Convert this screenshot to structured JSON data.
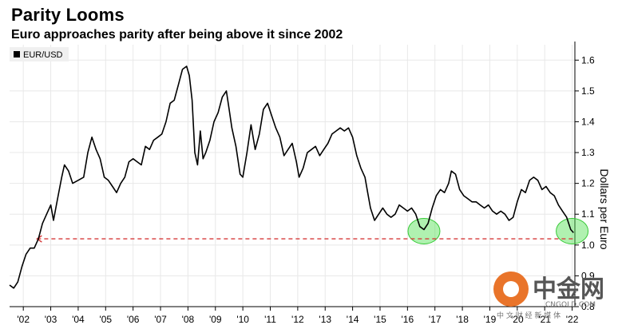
{
  "header": {
    "title": "Parity Looms",
    "subtitle": "Euro approaches parity after being above it since 2002"
  },
  "watermark": {
    "brand": "中金网",
    "site": "CNGOLD.COM",
    "tagline": "中 文 财 经 新 媒 体"
  },
  "colors": {
    "line": "#000000",
    "parity": "#d63a3a",
    "highlight": "#4fe04f"
  },
  "chart_data": {
    "type": "line",
    "legend": [
      "EUR/USD"
    ],
    "legend_position": "top-left",
    "ylabel": "Dollars per Euro",
    "ylim": [
      0.8,
      1.65
    ],
    "yticks": [
      0.8,
      0.9,
      1.0,
      1.1,
      1.2,
      1.3,
      1.4,
      1.5,
      1.6
    ],
    "ytick_labels": [
      "0.8",
      "0.9",
      "1.0",
      "1.1",
      "1.2",
      "1.3",
      "1.4",
      "1.5",
      "1.6"
    ],
    "xlim": [
      2002.0,
      2022.6
    ],
    "xticks": [
      2002.5,
      2003.5,
      2004.5,
      2005.5,
      2006.5,
      2007.5,
      2008.5,
      2009.5,
      2010.5,
      2011.5,
      2012.5,
      2013.5,
      2014.5,
      2015.5,
      2016.5,
      2017.5,
      2018.5,
      2019.5,
      2020.5,
      2021.5,
      2022.5
    ],
    "xtick_labels": [
      "'02",
      "'03",
      "'04",
      "'05",
      "'06",
      "'07",
      "'08",
      "'09",
      "'10",
      "'11",
      "'12",
      "'13",
      "'14",
      "'15",
      "'16",
      "'17",
      "'18",
      "'19",
      "'20",
      "'21",
      "'22"
    ],
    "grid": true,
    "parity_line": 1.02,
    "highlights": [
      {
        "x": 2017.1,
        "y": 1.045
      },
      {
        "x": 2022.5,
        "y": 1.045
      }
    ],
    "series": [
      {
        "name": "EUR/USD",
        "x": [
          2002.0,
          2002.15,
          2002.3,
          2002.45,
          2002.6,
          2002.75,
          2002.9,
          2003.05,
          2003.2,
          2003.35,
          2003.5,
          2003.6,
          2003.75,
          2003.9,
          2004.0,
          2004.15,
          2004.3,
          2004.5,
          2004.7,
          2004.85,
          2005.0,
          2005.15,
          2005.3,
          2005.45,
          2005.6,
          2005.75,
          2005.9,
          2006.05,
          2006.2,
          2006.35,
          2006.5,
          2006.65,
          2006.8,
          2006.95,
          2007.1,
          2007.25,
          2007.4,
          2007.55,
          2007.7,
          2007.85,
          2008.0,
          2008.15,
          2008.3,
          2008.45,
          2008.55,
          2008.65,
          2008.75,
          2008.85,
          2008.95,
          2009.05,
          2009.15,
          2009.3,
          2009.45,
          2009.6,
          2009.75,
          2009.9,
          2010.0,
          2010.1,
          2010.25,
          2010.4,
          2010.5,
          2010.65,
          2010.8,
          2010.95,
          2011.1,
          2011.25,
          2011.4,
          2011.55,
          2011.7,
          2011.85,
          2012.0,
          2012.15,
          2012.3,
          2012.45,
          2012.55,
          2012.7,
          2012.85,
          2013.0,
          2013.15,
          2013.3,
          2013.45,
          2013.6,
          2013.75,
          2013.9,
          2014.05,
          2014.2,
          2014.35,
          2014.5,
          2014.65,
          2014.8,
          2014.95,
          2015.05,
          2015.15,
          2015.3,
          2015.45,
          2015.6,
          2015.75,
          2015.9,
          2016.05,
          2016.2,
          2016.35,
          2016.5,
          2016.65,
          2016.8,
          2016.95,
          2017.1,
          2017.25,
          2017.4,
          2017.55,
          2017.7,
          2017.85,
          2018.0,
          2018.1,
          2018.25,
          2018.4,
          2018.55,
          2018.7,
          2018.85,
          2019.0,
          2019.15,
          2019.3,
          2019.45,
          2019.6,
          2019.75,
          2019.9,
          2020.05,
          2020.2,
          2020.35,
          2020.5,
          2020.65,
          2020.8,
          2020.95,
          2021.1,
          2021.25,
          2021.4,
          2021.55,
          2021.7,
          2021.85,
          2022.0,
          2022.15,
          2022.3,
          2022.45,
          2022.55
        ],
        "values": [
          0.87,
          0.86,
          0.88,
          0.93,
          0.97,
          0.99,
          0.99,
          1.02,
          1.07,
          1.1,
          1.13,
          1.08,
          1.15,
          1.22,
          1.26,
          1.24,
          1.2,
          1.21,
          1.22,
          1.3,
          1.35,
          1.31,
          1.28,
          1.22,
          1.21,
          1.19,
          1.17,
          1.2,
          1.22,
          1.27,
          1.28,
          1.27,
          1.26,
          1.32,
          1.31,
          1.34,
          1.35,
          1.36,
          1.4,
          1.46,
          1.47,
          1.52,
          1.57,
          1.58,
          1.55,
          1.47,
          1.3,
          1.26,
          1.37,
          1.28,
          1.3,
          1.34,
          1.4,
          1.43,
          1.48,
          1.5,
          1.44,
          1.38,
          1.32,
          1.23,
          1.22,
          1.3,
          1.39,
          1.31,
          1.36,
          1.44,
          1.46,
          1.42,
          1.38,
          1.35,
          1.29,
          1.31,
          1.33,
          1.27,
          1.22,
          1.25,
          1.3,
          1.31,
          1.32,
          1.29,
          1.31,
          1.33,
          1.36,
          1.37,
          1.38,
          1.37,
          1.38,
          1.35,
          1.29,
          1.25,
          1.22,
          1.17,
          1.12,
          1.08,
          1.1,
          1.12,
          1.1,
          1.09,
          1.1,
          1.13,
          1.12,
          1.11,
          1.12,
          1.1,
          1.06,
          1.05,
          1.07,
          1.12,
          1.16,
          1.18,
          1.17,
          1.2,
          1.24,
          1.23,
          1.18,
          1.16,
          1.15,
          1.14,
          1.14,
          1.13,
          1.12,
          1.13,
          1.11,
          1.1,
          1.11,
          1.1,
          1.08,
          1.09,
          1.14,
          1.18,
          1.17,
          1.21,
          1.22,
          1.21,
          1.18,
          1.19,
          1.17,
          1.16,
          1.13,
          1.11,
          1.09,
          1.05,
          1.04
        ]
      }
    ]
  }
}
